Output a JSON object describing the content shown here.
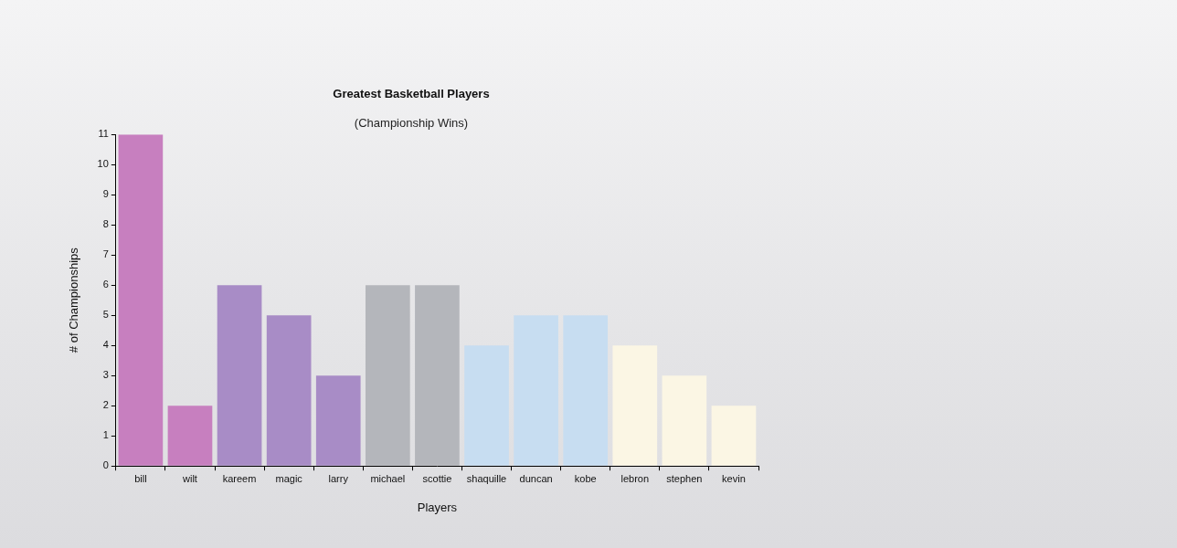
{
  "chart_data": {
    "type": "bar",
    "title": "Greatest Basketball Players",
    "subtitle": "(Championship Wins)",
    "x_label": "Players",
    "y_label": "# of Championships",
    "categories": [
      "bill",
      "wilt",
      "kareem",
      "magic",
      "larry",
      "michael",
      "scottie",
      "shaquille",
      "duncan",
      "kobe",
      "lebron",
      "stephen",
      "kevin"
    ],
    "values": [
      11,
      2,
      6,
      5,
      3,
      6,
      6,
      4,
      5,
      5,
      4,
      3,
      2
    ],
    "colors": [
      "#c77fbf",
      "#c77fbf",
      "#a88cc6",
      "#a88cc6",
      "#a88cc6",
      "#b4b6bb",
      "#b4b6bb",
      "#c7ddf1",
      "#c7ddf1",
      "#c7ddf1",
      "#fbf6e4",
      "#fbf6e4",
      "#fbf6e4"
    ],
    "ylim": [
      0,
      11
    ],
    "yticks": [
      0,
      1,
      2,
      3,
      4,
      5,
      6,
      7,
      8,
      9,
      10,
      11
    ],
    "grid": false
  }
}
